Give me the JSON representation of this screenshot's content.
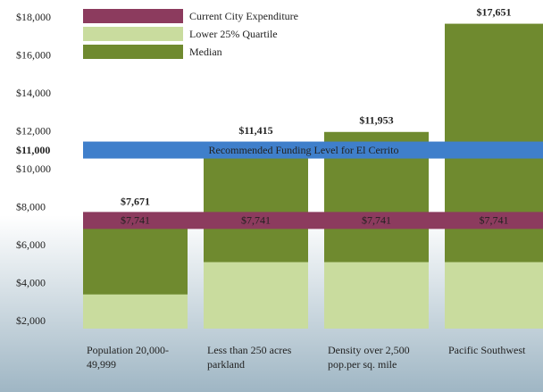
{
  "chart_data": {
    "type": "bar",
    "categories": [
      "Population 20,000-49,999",
      "Less than 250 acres parkland",
      "Density over 2,500 pop.per sq. mile",
      "Pacific Southwest"
    ],
    "series": [
      {
        "name": "Median",
        "color": "#6f8a2f",
        "values": [
          7671,
          11415,
          11953,
          17651
        ],
        "value_labels": [
          "$7,671",
          "$11,415",
          "$11,953",
          "$17,651"
        ]
      },
      {
        "name": "Lower 25% Quartile",
        "color": "#c9dc9e",
        "values": [
          3400,
          5100,
          5100,
          5100
        ]
      }
    ],
    "reference_lines": [
      {
        "name": "Current City Expenditure",
        "color": "#8c3b5e",
        "value": 7741,
        "value_label": "$7,741"
      },
      {
        "name": "Recommended Funding Level for El Cerrito",
        "color": "#3f7fcb",
        "value": 11000,
        "value_label": "$11,000"
      }
    ],
    "legend_order": [
      "Current City Expenditure",
      "Lower 25% Quartile",
      "Median"
    ],
    "ylim": [
      1600,
      18900
    ],
    "yticks": [
      {
        "value": 2000,
        "label": "$2,000"
      },
      {
        "value": 4000,
        "label": "$4,000"
      },
      {
        "value": 6000,
        "label": "$6,000"
      },
      {
        "value": 8000,
        "label": "$8,000"
      },
      {
        "value": 10000,
        "label": "$10,000"
      },
      {
        "value": 12000,
        "label": "$12,000"
      },
      {
        "value": 14000,
        "label": "$14,000"
      },
      {
        "value": 16000,
        "label": "$16,000"
      },
      {
        "value": 18000,
        "label": "$18,000"
      }
    ],
    "legend": "top-left"
  }
}
